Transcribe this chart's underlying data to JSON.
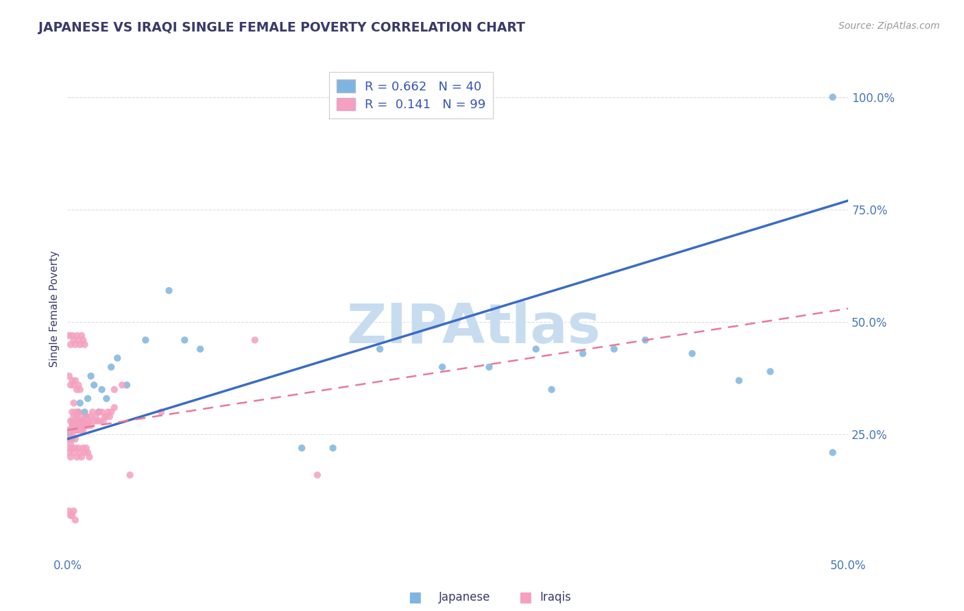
{
  "title": "JAPANESE VS IRAQI SINGLE FEMALE POVERTY CORRELATION CHART",
  "source": "Source: ZipAtlas.com",
  "ylabel": "Single Female Poverty",
  "xlim": [
    0.0,
    0.5
  ],
  "ylim": [
    -0.02,
    1.08
  ],
  "xticks": [
    0.0,
    0.1,
    0.2,
    0.3,
    0.4,
    0.5
  ],
  "xticklabels": [
    "0.0%",
    "",
    "",
    "",
    "",
    "50.0%"
  ],
  "yticks_right": [
    0.25,
    0.5,
    0.75,
    1.0
  ],
  "yticklabels_right": [
    "25.0%",
    "50.0%",
    "75.0%",
    "100.0%"
  ],
  "japanese_color": "#7EB5E0",
  "iraqi_color": "#F5A0BE",
  "watermark": "ZIPAtlas",
  "watermark_color": "#C8DCF0",
  "background_color": "#FFFFFF",
  "grid_color": "#DDDDDD",
  "title_color": "#3A3A6A",
  "axis_label_color": "#3A3A6A",
  "tick_label_color": "#4477BB",
  "blue_line_color": "#3B6CC5",
  "pink_line_color": "#E8789A",
  "legend_box_color": "#AACCEE",
  "japanese_x": [
    0.001,
    0.002,
    0.003,
    0.004,
    0.005,
    0.006,
    0.007,
    0.008,
    0.009,
    0.01,
    0.011,
    0.012,
    0.013,
    0.015,
    0.017,
    0.02,
    0.022,
    0.025,
    0.028,
    0.032,
    0.038,
    0.05,
    0.065,
    0.075,
    0.085,
    0.15,
    0.17,
    0.2,
    0.24,
    0.27,
    0.3,
    0.31,
    0.33,
    0.35,
    0.37,
    0.4,
    0.43,
    0.45,
    0.49,
    0.49
  ],
  "japanese_y": [
    0.25,
    0.26,
    0.24,
    0.27,
    0.28,
    0.26,
    0.3,
    0.32,
    0.28,
    0.27,
    0.3,
    0.29,
    0.33,
    0.38,
    0.36,
    0.3,
    0.35,
    0.33,
    0.4,
    0.42,
    0.36,
    0.46,
    0.57,
    0.46,
    0.44,
    0.22,
    0.22,
    0.44,
    0.4,
    0.4,
    0.44,
    0.35,
    0.43,
    0.44,
    0.46,
    0.43,
    0.37,
    0.39,
    0.21,
    1.0
  ],
  "iraqi_x": [
    0.001,
    0.001,
    0.001,
    0.002,
    0.002,
    0.002,
    0.003,
    0.003,
    0.003,
    0.003,
    0.004,
    0.004,
    0.004,
    0.004,
    0.005,
    0.005,
    0.005,
    0.005,
    0.006,
    0.006,
    0.006,
    0.006,
    0.007,
    0.007,
    0.007,
    0.008,
    0.008,
    0.008,
    0.009,
    0.009,
    0.01,
    0.01,
    0.011,
    0.011,
    0.012,
    0.012,
    0.013,
    0.013,
    0.014,
    0.015,
    0.015,
    0.016,
    0.017,
    0.018,
    0.019,
    0.02,
    0.021,
    0.022,
    0.023,
    0.024,
    0.025,
    0.026,
    0.027,
    0.028,
    0.03,
    0.001,
    0.002,
    0.003,
    0.004,
    0.005,
    0.006,
    0.007,
    0.008,
    0.009,
    0.01,
    0.011,
    0.012,
    0.013,
    0.014,
    0.001,
    0.002,
    0.003,
    0.004,
    0.005,
    0.006,
    0.007,
    0.008,
    0.001,
    0.002,
    0.003,
    0.004,
    0.005,
    0.006,
    0.007,
    0.008,
    0.009,
    0.01,
    0.011,
    0.001,
    0.002,
    0.003,
    0.004,
    0.005,
    0.03,
    0.035,
    0.04,
    0.06,
    0.12,
    0.16
  ],
  "iraqi_y": [
    0.26,
    0.24,
    0.22,
    0.28,
    0.26,
    0.23,
    0.3,
    0.27,
    0.25,
    0.28,
    0.32,
    0.29,
    0.26,
    0.28,
    0.3,
    0.27,
    0.24,
    0.28,
    0.29,
    0.26,
    0.27,
    0.28,
    0.3,
    0.27,
    0.26,
    0.29,
    0.27,
    0.26,
    0.28,
    0.26,
    0.27,
    0.26,
    0.28,
    0.27,
    0.29,
    0.27,
    0.28,
    0.27,
    0.28,
    0.29,
    0.27,
    0.3,
    0.28,
    0.29,
    0.28,
    0.3,
    0.28,
    0.3,
    0.28,
    0.29,
    0.29,
    0.3,
    0.29,
    0.3,
    0.31,
    0.21,
    0.2,
    0.22,
    0.21,
    0.22,
    0.2,
    0.22,
    0.21,
    0.2,
    0.22,
    0.21,
    0.22,
    0.21,
    0.2,
    0.38,
    0.36,
    0.37,
    0.36,
    0.37,
    0.35,
    0.36,
    0.35,
    0.47,
    0.45,
    0.47,
    0.46,
    0.45,
    0.47,
    0.46,
    0.45,
    0.47,
    0.46,
    0.45,
    0.08,
    0.07,
    0.07,
    0.08,
    0.06,
    0.35,
    0.36,
    0.16,
    0.3,
    0.46,
    0.16
  ],
  "jap_line_x0": 0.0,
  "jap_line_y0": 0.24,
  "jap_line_x1": 0.5,
  "jap_line_y1": 0.77,
  "irq_line_x0": 0.0,
  "irq_line_y0": 0.26,
  "irq_line_x1": 0.5,
  "irq_line_y1": 0.53
}
